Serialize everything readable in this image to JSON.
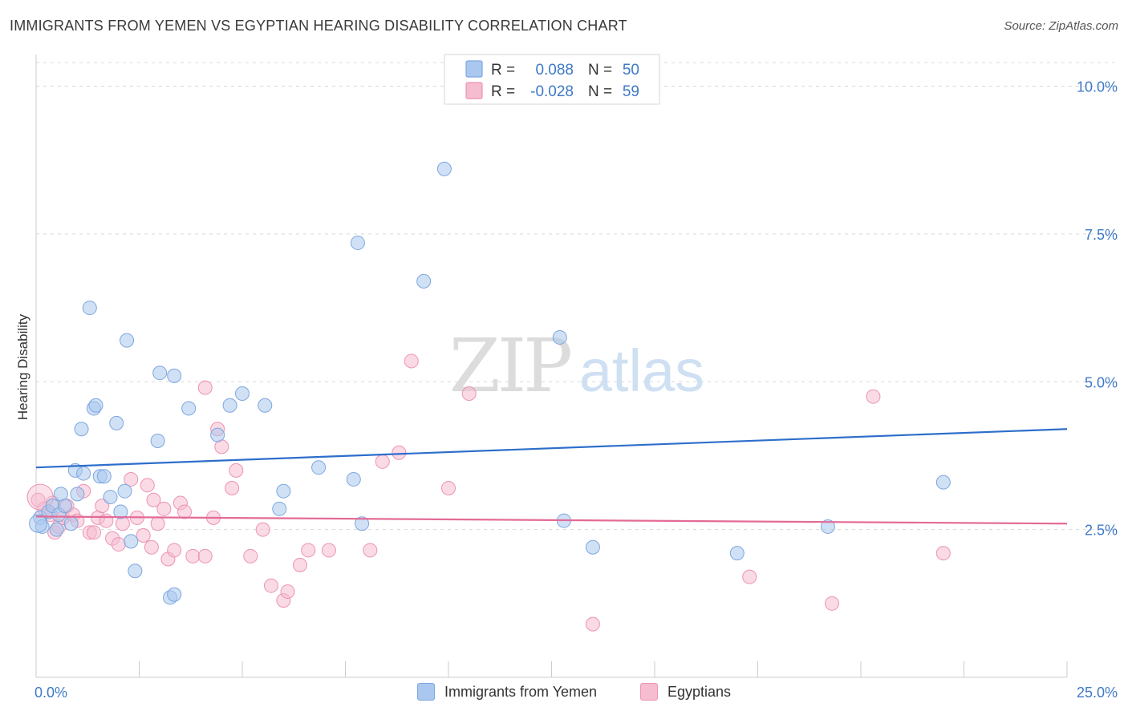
{
  "header": {
    "title": "IMMIGRANTS FROM YEMEN VS EGYPTIAN HEARING DISABILITY CORRELATION CHART",
    "source": "Source: ZipAtlas.com"
  },
  "watermark": {
    "zip": "ZIP",
    "atlas": "atlas"
  },
  "legend_top": {
    "rows": [
      {
        "r_label": "R =",
        "r_value": "0.088",
        "n_label": "N =",
        "n_value": "50"
      },
      {
        "r_label": "R =",
        "r_value": "-0.028",
        "n_label": "N =",
        "n_value": "59"
      }
    ]
  },
  "colors": {
    "blue_fill": "#aac8ef",
    "blue_stroke": "#7ea6de",
    "blue_line": "#2d6ecb",
    "pink_fill": "#f6bcd0",
    "pink_stroke": "#ec93b4",
    "pink_line": "#e36b97",
    "value_text": "#3f79c6",
    "grid": "#d8d8d8"
  },
  "chart_data": {
    "type": "scatter",
    "title": "IMMIGRANTS FROM YEMEN VS EGYPTIAN HEARING DISABILITY CORRELATION CHART",
    "xlabel": "",
    "ylabel": "Hearing Disability",
    "xlim": [
      0,
      25
    ],
    "ylim": [
      0,
      10.4
    ],
    "x_tick_labels": [
      "0.0%",
      "25.0%"
    ],
    "y_ticks": [
      2.5,
      5.0,
      7.5,
      10.0
    ],
    "y_tick_labels": [
      "2.5%",
      "5.0%",
      "7.5%",
      "10.0%"
    ],
    "grid": true,
    "legend_position": "top-center",
    "series": [
      {
        "name": "Immigrants from Yemen",
        "color": "#aac8ef",
        "r": 0.088,
        "n": 50,
        "trend": {
          "x": [
            0,
            25
          ],
          "y": [
            3.55,
            4.2
          ]
        },
        "points": [
          [
            0.1,
            2.7
          ],
          [
            0.15,
            2.55
          ],
          [
            0.3,
            2.8
          ],
          [
            0.4,
            2.9
          ],
          [
            0.5,
            2.5
          ],
          [
            0.55,
            2.75
          ],
          [
            0.6,
            3.1
          ],
          [
            0.7,
            2.9
          ],
          [
            0.85,
            2.6
          ],
          [
            0.95,
            3.5
          ],
          [
            1.0,
            3.1
          ],
          [
            1.1,
            4.2
          ],
          [
            1.15,
            3.45
          ],
          [
            1.4,
            4.55
          ],
          [
            1.45,
            4.6
          ],
          [
            1.55,
            3.4
          ],
          [
            1.65,
            3.4
          ],
          [
            1.8,
            3.05
          ],
          [
            1.95,
            4.3
          ],
          [
            2.05,
            2.8
          ],
          [
            2.15,
            3.15
          ],
          [
            2.2,
            5.7
          ],
          [
            2.3,
            2.3
          ],
          [
            2.4,
            1.8
          ],
          [
            1.3,
            6.25
          ],
          [
            2.95,
            4.0
          ],
          [
            3.0,
            5.15
          ],
          [
            3.25,
            1.35
          ],
          [
            3.35,
            1.4
          ],
          [
            3.35,
            5.1
          ],
          [
            3.7,
            4.55
          ],
          [
            4.4,
            4.1
          ],
          [
            4.7,
            4.6
          ],
          [
            5.0,
            4.8
          ],
          [
            5.55,
            4.6
          ],
          [
            5.9,
            2.85
          ],
          [
            6.0,
            3.15
          ],
          [
            6.85,
            3.55
          ],
          [
            7.7,
            3.35
          ],
          [
            7.8,
            7.35
          ],
          [
            7.9,
            2.6
          ],
          [
            9.4,
            6.7
          ],
          [
            9.9,
            8.6
          ],
          [
            12.7,
            5.75
          ],
          [
            12.8,
            2.65
          ],
          [
            13.5,
            2.2
          ],
          [
            17.0,
            2.1
          ],
          [
            19.2,
            2.55
          ],
          [
            22.0,
            3.3
          ],
          [
            0.05,
            2.6
          ]
        ]
      },
      {
        "name": "Egyptians",
        "color": "#f6bcd0",
        "r": -0.028,
        "n": 59,
        "trend": {
          "x": [
            0,
            25
          ],
          "y": [
            2.72,
            2.6
          ]
        },
        "points": [
          [
            0.05,
            3.0
          ],
          [
            0.2,
            2.85
          ],
          [
            0.35,
            2.75
          ],
          [
            0.4,
            2.95
          ],
          [
            0.45,
            2.45
          ],
          [
            0.55,
            2.55
          ],
          [
            0.65,
            2.7
          ],
          [
            0.75,
            2.9
          ],
          [
            0.9,
            2.75
          ],
          [
            1.0,
            2.65
          ],
          [
            1.15,
            3.15
          ],
          [
            1.3,
            2.45
          ],
          [
            1.4,
            2.45
          ],
          [
            1.5,
            2.7
          ],
          [
            1.6,
            2.9
          ],
          [
            1.7,
            2.65
          ],
          [
            1.85,
            2.35
          ],
          [
            2.0,
            2.25
          ],
          [
            2.1,
            2.6
          ],
          [
            2.3,
            3.35
          ],
          [
            2.45,
            2.7
          ],
          [
            2.6,
            2.4
          ],
          [
            2.7,
            3.25
          ],
          [
            2.8,
            2.2
          ],
          [
            2.85,
            3.0
          ],
          [
            2.95,
            2.6
          ],
          [
            3.1,
            2.85
          ],
          [
            3.2,
            2.0
          ],
          [
            3.35,
            2.15
          ],
          [
            3.5,
            2.95
          ],
          [
            3.6,
            2.8
          ],
          [
            3.8,
            2.05
          ],
          [
            4.1,
            2.05
          ],
          [
            4.3,
            2.7
          ],
          [
            4.4,
            4.2
          ],
          [
            4.5,
            3.9
          ],
          [
            4.75,
            3.2
          ],
          [
            4.85,
            3.5
          ],
          [
            5.2,
            2.05
          ],
          [
            5.5,
            2.5
          ],
          [
            5.7,
            1.55
          ],
          [
            6.0,
            1.3
          ],
          [
            6.1,
            1.45
          ],
          [
            6.4,
            1.9
          ],
          [
            6.6,
            2.15
          ],
          [
            7.1,
            2.15
          ],
          [
            8.1,
            2.15
          ],
          [
            8.4,
            3.65
          ],
          [
            8.8,
            3.8
          ],
          [
            9.1,
            5.35
          ],
          [
            10.0,
            3.2
          ],
          [
            10.5,
            4.8
          ],
          [
            4.1,
            4.9
          ],
          [
            13.5,
            0.9
          ],
          [
            17.3,
            1.7
          ],
          [
            19.3,
            1.25
          ],
          [
            20.3,
            4.75
          ],
          [
            22.0,
            2.1
          ],
          [
            0.1,
            3.05
          ]
        ]
      }
    ]
  },
  "legend_bottom": [
    {
      "label": "Immigrants from Yemen"
    },
    {
      "label": "Egyptians"
    }
  ]
}
